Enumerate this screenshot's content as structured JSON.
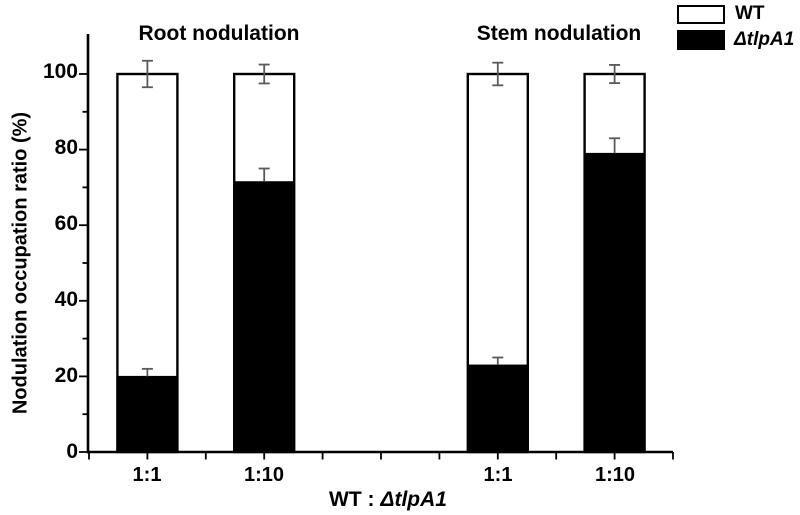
{
  "figure": {
    "background": "#ffffff",
    "ink": "#000000",
    "error_bar_color": "#5a5a5a"
  },
  "chart_data": {
    "type": "bar",
    "stacking": "stacked-to-100",
    "title": "",
    "group_titles": [
      "Root nodulation",
      "Stem nodulation"
    ],
    "ylabel": "Nodulation occupation ratio (%)",
    "xlabel_full": "WT : ΔtlpA1",
    "xlabel_prefix": "WT : ",
    "xlabel_mutant": "ΔtlpA1",
    "ylim": [
      0,
      100
    ],
    "ytick_labels": [
      "0",
      "20",
      "40",
      "60",
      "80",
      "100"
    ],
    "ytick_values": [
      0,
      20,
      40,
      60,
      80,
      100
    ],
    "ytick_minor_values": [
      10,
      30,
      50,
      70,
      90
    ],
    "categories": [
      "1:1",
      "1:10",
      "1:1",
      "1:10"
    ],
    "grid": false,
    "legend_position": "top-right",
    "legend": [
      {
        "label": "WT",
        "fill": "#ffffff",
        "italic": false
      },
      {
        "label": "ΔtlpA1",
        "fill": "#000000",
        "italic": true
      }
    ],
    "bars": [
      {
        "group": "Root nodulation",
        "category": "1:1",
        "delta_tlpA1": 20,
        "wt": 80,
        "total": 100,
        "delta_err": 2,
        "total_err": 3.5
      },
      {
        "group": "Root nodulation",
        "category": "1:10",
        "delta_tlpA1": 71.5,
        "wt": 28.5,
        "total": 100,
        "delta_err": 3.5,
        "total_err": 2.5
      },
      {
        "group": "Stem nodulation",
        "category": "1:1",
        "delta_tlpA1": 23,
        "wt": 77,
        "total": 100,
        "delta_err": 2,
        "total_err": 3
      },
      {
        "group": "Stem nodulation",
        "category": "1:10",
        "delta_tlpA1": 79,
        "wt": 21,
        "total": 100,
        "delta_err": 4,
        "total_err": 2.4
      }
    ]
  }
}
